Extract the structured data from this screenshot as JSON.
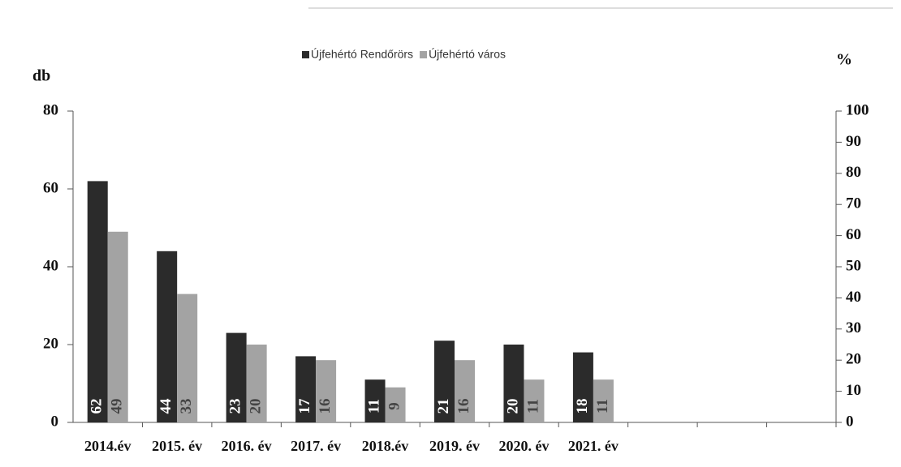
{
  "chart_data": {
    "type": "bar",
    "categories": [
      "2014.év",
      "2015. év",
      "2016. év",
      "2017. év",
      "2018.év",
      "2019. év",
      "2020. év",
      "2021. év",
      null,
      null,
      null
    ],
    "series": [
      {
        "name": "Újfehértó Rendőrörs",
        "color": "#2b2b2b",
        "values": [
          62,
          44,
          23,
          17,
          11,
          21,
          20,
          18,
          null,
          null,
          null
        ]
      },
      {
        "name": "Újfehértó város",
        "color": "#a3a3a3",
        "values": [
          49,
          33,
          20,
          16,
          9,
          16,
          11,
          11,
          null,
          null,
          null
        ]
      }
    ],
    "y_label": "db",
    "y2_label": "%",
    "ylim": [
      0,
      80
    ],
    "yticks": [
      0,
      20,
      40,
      60,
      80
    ],
    "y2lim": [
      0,
      100
    ],
    "y2ticks": [
      0,
      10,
      20,
      30,
      40,
      50,
      60,
      70,
      80,
      90,
      100
    ],
    "legend": "top",
    "grid": false
  }
}
